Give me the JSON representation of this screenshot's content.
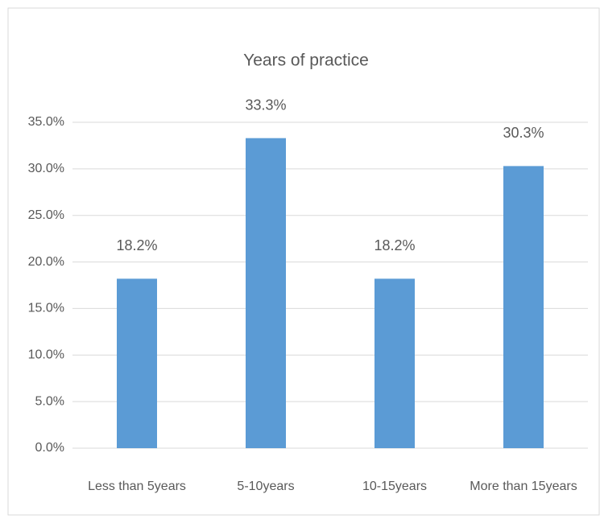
{
  "chart_data": {
    "type": "bar",
    "title": "Years of practice",
    "categories": [
      "Less than 5years",
      "5-10years",
      "10-15years",
      "More than 15years"
    ],
    "values": [
      18.2,
      33.3,
      18.2,
      30.3
    ],
    "value_labels": [
      "18.2%",
      "33.3%",
      "18.2%",
      "30.3%"
    ],
    "color": "#5b9bd5",
    "ylim": [
      0,
      35
    ],
    "yticks": [
      {
        "value": 0,
        "label": "0.0%"
      },
      {
        "value": 5,
        "label": "5.0%"
      },
      {
        "value": 10,
        "label": "10.0%"
      },
      {
        "value": 15,
        "label": "15.0%"
      },
      {
        "value": 20,
        "label": "20.0%"
      },
      {
        "value": 25,
        "label": "25.0%"
      },
      {
        "value": 30,
        "label": "30.0%"
      },
      {
        "value": 35,
        "label": "35.0%"
      }
    ],
    "grid": true
  }
}
